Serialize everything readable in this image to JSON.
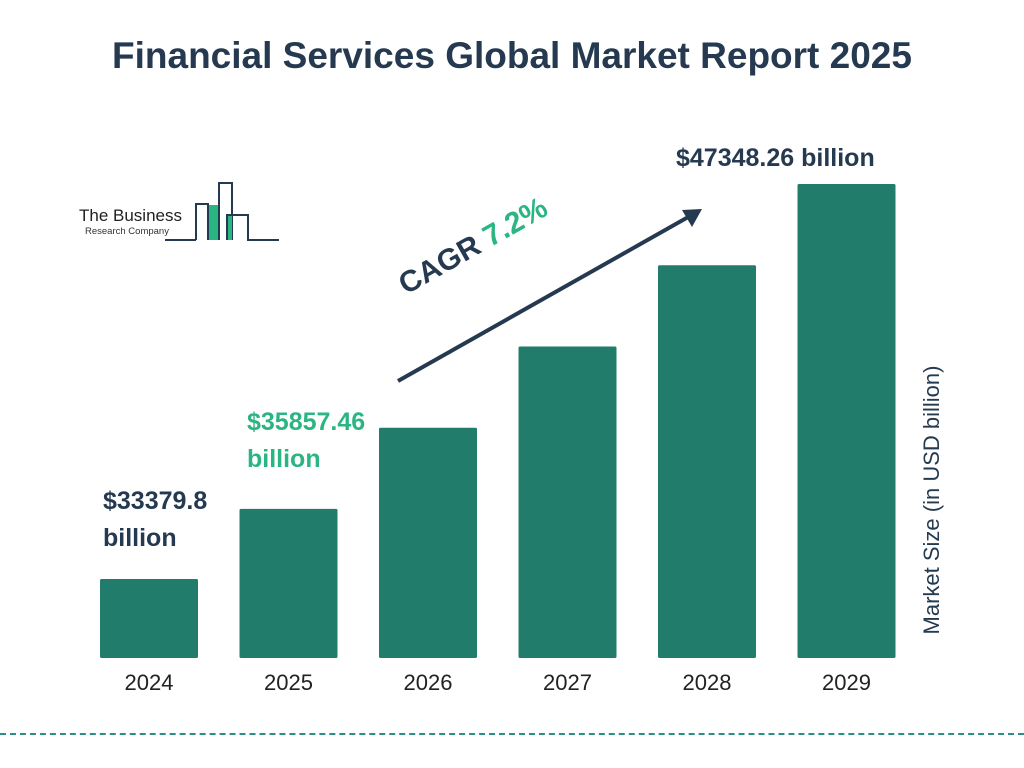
{
  "title": "Financial Services Global Market Report 2025",
  "logo": {
    "line1": "The Business",
    "line2": "Research Company"
  },
  "colors": {
    "bar": "#217c6b",
    "text": "#253a50",
    "accent": "#2bb583",
    "dashed_line": "#2a8f86"
  },
  "chart_data": {
    "type": "bar",
    "categories": [
      "2024",
      "2025",
      "2026",
      "2027",
      "2028",
      "2029"
    ],
    "values": [
      33379.8,
      35857.46,
      null,
      null,
      null,
      47348.26
    ],
    "labels": [
      "$33379.8 billion",
      "$35857.46 billion",
      "",
      "",
      "",
      "$47348.26 billion"
    ],
    "ylabel": "Market Size (in USD billion)",
    "cagr_label": "CAGR",
    "cagr_value": "7.2%",
    "grid": false
  }
}
